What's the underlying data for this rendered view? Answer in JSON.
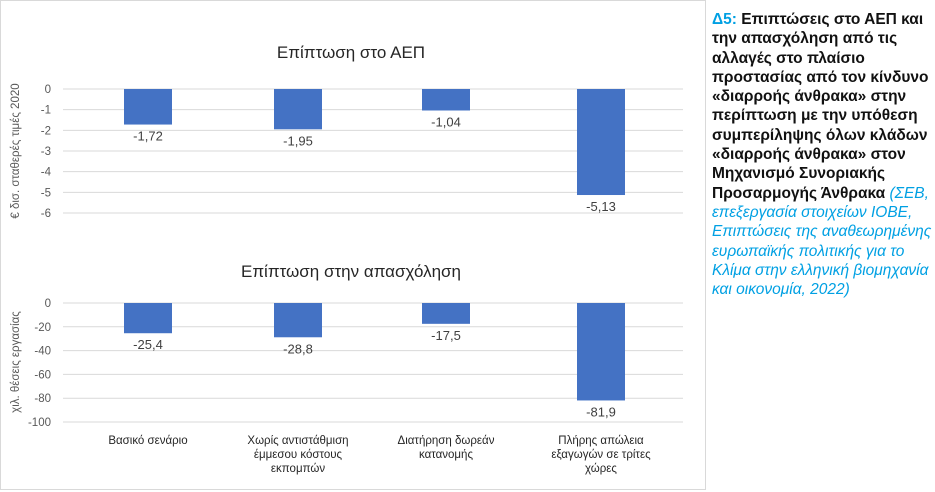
{
  "chart_data": [
    {
      "type": "bar",
      "title": "Επίπτωση στο ΑΕΠ",
      "ylabel": "€ δισ. σταθερές τιμές 2020",
      "ylim": [
        -6,
        0
      ],
      "yticks": [
        0,
        -1,
        -2,
        -3,
        -4,
        -5,
        -6
      ],
      "categories": [
        "Βασικό σενάριο",
        "Χωρίς αντιστάθμιση έμμεσου κόστους εκπομπών",
        "Διατήρηση δωρεάν κατανομής",
        "Πλήρης απώλεια εξαγωγών σε τρίτες χώρες"
      ],
      "values": [
        -1.72,
        -1.95,
        -1.04,
        -5.13
      ],
      "data_labels": [
        "-1,72",
        "-1,95",
        "-1,04",
        "-5,13"
      ],
      "grid": true,
      "color": "#4472c4"
    },
    {
      "type": "bar",
      "title": "Επίπτωση στην απασχόληση",
      "ylabel": "χιλ. θέσεις εργασίας",
      "ylim": [
        -100,
        0
      ],
      "yticks": [
        0,
        -20,
        -40,
        -60,
        -80,
        -100
      ],
      "categories": [
        "Βασικό σενάριο",
        "Χωρίς αντιστάθμιση έμμεσου κόστους εκπομπών",
        "Διατήρηση δωρεάν κατανομής",
        "Πλήρης απώλεια εξαγωγών σε τρίτες χώρες"
      ],
      "category_lines": [
        [
          "Βασικό σενάριο"
        ],
        [
          "Χωρίς αντιστάθμιση",
          "έμμεσου κόστους",
          "εκπομπών"
        ],
        [
          "Διατήρηση δωρεάν",
          "κατανομής"
        ],
        [
          "Πλήρης απώλεια",
          "εξαγωγών σε τρίτες",
          "χώρες"
        ]
      ],
      "values": [
        -25.4,
        -28.8,
        -17.5,
        -81.9
      ],
      "data_labels": [
        "-25,4",
        "-28,8",
        "-17,5",
        "-81,9"
      ],
      "grid": true,
      "color": "#4472c4"
    }
  ],
  "side": {
    "label": "Δ5:",
    "heading": "Επιπτώσεις στο ΑΕΠ και την απασχόληση  από τις αλλαγές στο πλαίσιο προστασίας από τον κίνδυνο «διαρροής άνθρακα» στην περίπτωση  με την υπόθεση συμπερίληψης όλων κλάδων «διαρροής άνθρακα» στον Μηχανισμό Συνοριακής Προσαρμογής Άνθρακα",
    "source": "(ΣΕΒ, επεξεργασία στοιχείων ΙΟΒΕ, Επιπτώσεις της αναθεωρημένης ευρωπαϊκής πολιτικής για το Κλίμα στην ελληνική βιομηχανία και οικονομία, 2022)"
  }
}
